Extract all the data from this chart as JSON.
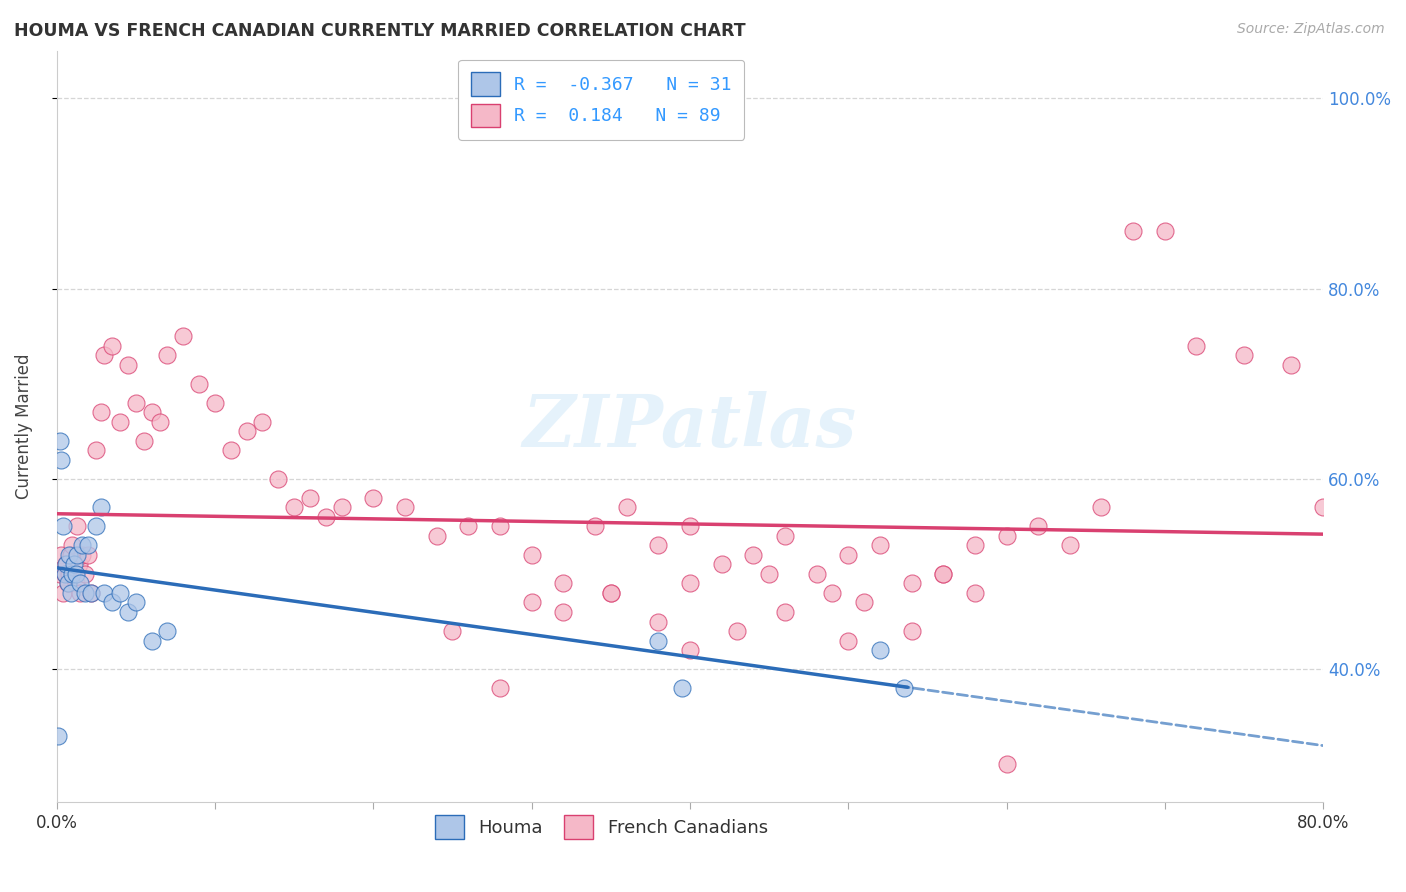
{
  "title": "HOUMA VS FRENCH CANADIAN CURRENTLY MARRIED CORRELATION CHART",
  "source": "Source: ZipAtlas.com",
  "ylabel": "Currently Married",
  "xlim": [
    0.0,
    0.8
  ],
  "ylim": [
    0.26,
    1.05
  ],
  "ytick_positions": [
    0.4,
    0.6,
    0.8,
    1.0
  ],
  "ytick_labels": [
    "40.0%",
    "60.0%",
    "80.0%",
    "100.0%"
  ],
  "xtick_positions": [
    0.0,
    0.1,
    0.2,
    0.3,
    0.4,
    0.5,
    0.6,
    0.7,
    0.8
  ],
  "xtick_labels": [
    "0.0%",
    "",
    "",
    "",
    "",
    "",
    "",
    "",
    "80.0%"
  ],
  "houma_R": -0.367,
  "houma_N": 31,
  "fc_R": 0.184,
  "fc_N": 89,
  "houma_color": "#aec6e8",
  "fc_color": "#f5b8c8",
  "trend_houma_color": "#2b6cb8",
  "trend_fc_color": "#d94070",
  "background_color": "#ffffff",
  "grid_color": "#cccccc",
  "houma_x": [
    0.001,
    0.002,
    0.003,
    0.004,
    0.005,
    0.006,
    0.007,
    0.008,
    0.009,
    0.01,
    0.011,
    0.012,
    0.013,
    0.015,
    0.016,
    0.018,
    0.02,
    0.022,
    0.025,
    0.028,
    0.03,
    0.035,
    0.04,
    0.045,
    0.05,
    0.06,
    0.07,
    0.38,
    0.395,
    0.52,
    0.535
  ],
  "houma_y": [
    0.33,
    0.64,
    0.62,
    0.55,
    0.5,
    0.51,
    0.49,
    0.52,
    0.48,
    0.5,
    0.51,
    0.5,
    0.52,
    0.49,
    0.53,
    0.48,
    0.53,
    0.48,
    0.55,
    0.57,
    0.48,
    0.47,
    0.48,
    0.46,
    0.47,
    0.43,
    0.44,
    0.43,
    0.38,
    0.42,
    0.38
  ],
  "fc_x": [
    0.002,
    0.003,
    0.004,
    0.005,
    0.006,
    0.007,
    0.008,
    0.009,
    0.01,
    0.011,
    0.012,
    0.013,
    0.014,
    0.015,
    0.016,
    0.018,
    0.02,
    0.022,
    0.025,
    0.028,
    0.03,
    0.035,
    0.04,
    0.045,
    0.05,
    0.055,
    0.06,
    0.065,
    0.07,
    0.08,
    0.09,
    0.1,
    0.11,
    0.12,
    0.13,
    0.14,
    0.15,
    0.16,
    0.17,
    0.18,
    0.2,
    0.22,
    0.24,
    0.26,
    0.28,
    0.3,
    0.32,
    0.34,
    0.36,
    0.38,
    0.4,
    0.42,
    0.44,
    0.46,
    0.48,
    0.5,
    0.52,
    0.54,
    0.56,
    0.58,
    0.6,
    0.62,
    0.64,
    0.66,
    0.68,
    0.7,
    0.72,
    0.75,
    0.78,
    0.8,
    0.25,
    0.28,
    0.32,
    0.35,
    0.38,
    0.3,
    0.35,
    0.4,
    0.45,
    0.5,
    0.4,
    0.43,
    0.46,
    0.49,
    0.51,
    0.54,
    0.56,
    0.58,
    0.6
  ],
  "fc_y": [
    0.5,
    0.52,
    0.48,
    0.5,
    0.51,
    0.49,
    0.5,
    0.52,
    0.53,
    0.5,
    0.49,
    0.55,
    0.51,
    0.48,
    0.52,
    0.5,
    0.52,
    0.48,
    0.63,
    0.67,
    0.73,
    0.74,
    0.66,
    0.72,
    0.68,
    0.64,
    0.67,
    0.66,
    0.73,
    0.75,
    0.7,
    0.68,
    0.63,
    0.65,
    0.66,
    0.6,
    0.57,
    0.58,
    0.56,
    0.57,
    0.58,
    0.57,
    0.54,
    0.55,
    0.55,
    0.52,
    0.49,
    0.55,
    0.57,
    0.53,
    0.55,
    0.51,
    0.52,
    0.54,
    0.5,
    0.52,
    0.53,
    0.49,
    0.5,
    0.53,
    0.54,
    0.55,
    0.53,
    0.57,
    0.86,
    0.86,
    0.74,
    0.73,
    0.72,
    0.57,
    0.44,
    0.38,
    0.46,
    0.48,
    0.45,
    0.47,
    0.48,
    0.49,
    0.5,
    0.43,
    0.42,
    0.44,
    0.46,
    0.48,
    0.47,
    0.44,
    0.5,
    0.48,
    0.3
  ]
}
